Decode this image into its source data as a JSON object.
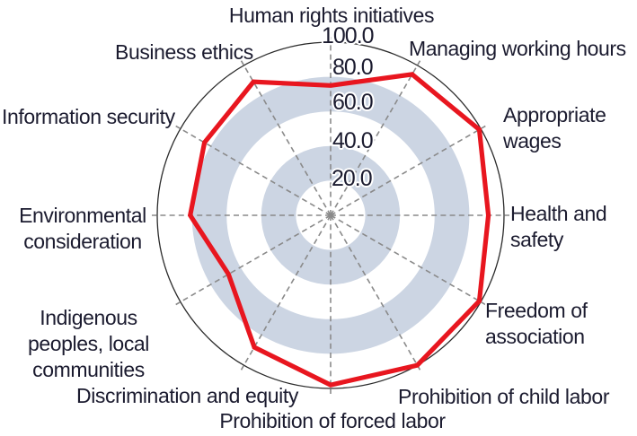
{
  "chart_data": {
    "type": "radar",
    "categories": [
      "Human rights initiatives",
      "Managing working hours",
      "Appropriate wages",
      "Health and safety",
      "Freedom of association",
      "Prohibition of child labor",
      "Prohibition of forced labor",
      "Discrimination and equity",
      "Indigenous peoples, local communities",
      "Environmental consideration",
      "Information security",
      "Business ethics"
    ],
    "values": [
      75,
      94,
      99,
      91,
      99,
      100,
      98,
      88,
      68,
      81,
      84,
      89
    ],
    "axis_range": [
      0,
      100
    ],
    "ring_interval": 20,
    "tick_labels": [
      "20.0",
      "40.0",
      "60.0",
      "80.0",
      "100.0"
    ],
    "rings": [
      20,
      40,
      60,
      80,
      100
    ],
    "legend": "none",
    "grid": "dashed-radial",
    "colors": {
      "line": "#e8161f",
      "band": "#ccd5e3",
      "white": "#ffffff",
      "grid": "#8a8a8a",
      "outline": "#2b2b2b",
      "text": "#1b1b2f"
    }
  }
}
